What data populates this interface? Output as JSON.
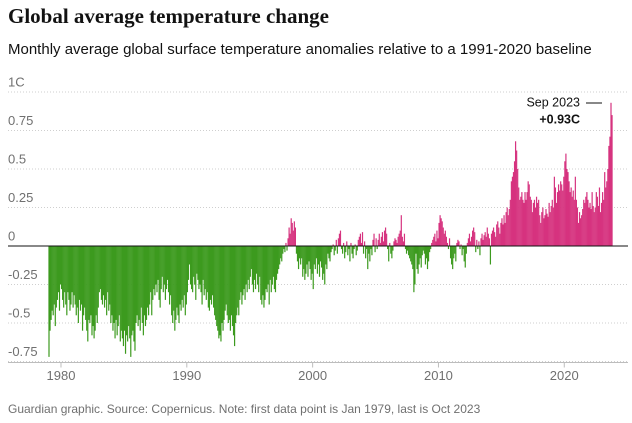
{
  "chart_data": {
    "type": "bar",
    "title": "Global average temperature change",
    "subtitle": "Monthly average global surface temperature anomalies relative to a 1991-2020 baseline",
    "source": "Guardian graphic. Source: Copernicus. Note: first data point is Jan 1979, last is Oct 2023",
    "color_positive": "#d6337f",
    "color_negative": "#3c9a1e",
    "xlim": [
      1979,
      2023.833
    ],
    "xticks": [
      1980,
      1990,
      2000,
      2010,
      2020
    ],
    "ylim": [
      -0.75,
      1
    ],
    "yticks": [
      {
        "value": 1,
        "label": "1C"
      },
      0.75,
      0.5,
      0.25,
      0,
      -0.25,
      -0.5,
      -0.75
    ],
    "grid": true,
    "annotations": [
      {
        "text": "Sep 2023",
        "value_label": "+0.93C"
      }
    ],
    "values": [
      -0.72,
      -0.55,
      -0.48,
      -0.42,
      -0.45,
      -0.38,
      -0.52,
      -0.4,
      -0.35,
      -0.3,
      -0.42,
      -0.25,
      -0.28,
      -0.35,
      -0.4,
      -0.3,
      -0.38,
      -0.45,
      -0.3,
      -0.35,
      -0.42,
      -0.38,
      -0.3,
      -0.4,
      -0.32,
      -0.38,
      -0.45,
      -0.4,
      -0.5,
      -0.35,
      -0.42,
      -0.38,
      -0.55,
      -0.45,
      -0.4,
      -0.48,
      -0.55,
      -0.62,
      -0.48,
      -0.5,
      -0.45,
      -0.58,
      -0.52,
      -0.6,
      -0.55,
      -0.45,
      -0.5,
      -0.4,
      -0.3,
      -0.28,
      -0.35,
      -0.38,
      -0.32,
      -0.4,
      -0.35,
      -0.45,
      -0.3,
      -0.42,
      -0.38,
      -0.5,
      -0.45,
      -0.55,
      -0.5,
      -0.6,
      -0.48,
      -0.58,
      -0.52,
      -0.45,
      -0.62,
      -0.55,
      -0.6,
      -0.65,
      -0.55,
      -0.7,
      -0.58,
      -0.62,
      -0.52,
      -0.6,
      -0.72,
      -0.58,
      -0.55,
      -0.62,
      -0.68,
      -0.5,
      -0.45,
      -0.52,
      -0.48,
      -0.55,
      -0.4,
      -0.5,
      -0.58,
      -0.45,
      -0.52,
      -0.48,
      -0.4,
      -0.45,
      -0.38,
      -0.3,
      -0.45,
      -0.35,
      -0.28,
      -0.32,
      -0.25,
      -0.3,
      -0.22,
      -0.35,
      -0.4,
      -0.28,
      -0.2,
      -0.3,
      -0.25,
      -0.35,
      -0.28,
      -0.22,
      -0.3,
      -0.38,
      -0.32,
      -0.45,
      -0.5,
      -0.42,
      -0.55,
      -0.48,
      -0.4,
      -0.45,
      -0.5,
      -0.38,
      -0.42,
      -0.35,
      -0.4,
      -0.32,
      -0.45,
      -0.38,
      -0.3,
      -0.22,
      -0.12,
      -0.25,
      -0.28,
      -0.3,
      -0.2,
      -0.25,
      -0.35,
      -0.18,
      -0.22,
      -0.28,
      -0.25,
      -0.3,
      -0.38,
      -0.22,
      -0.32,
      -0.28,
      -0.35,
      -0.3,
      -0.4,
      -0.42,
      -0.35,
      -0.38,
      -0.32,
      -0.4,
      -0.45,
      -0.48,
      -0.52,
      -0.55,
      -0.6,
      -0.58,
      -0.62,
      -0.5,
      -0.55,
      -0.48,
      -0.42,
      -0.38,
      -0.45,
      -0.5,
      -0.48,
      -0.55,
      -0.45,
      -0.52,
      -0.58,
      -0.65,
      -0.5,
      -0.45,
      -0.4,
      -0.45,
      -0.35,
      -0.3,
      -0.38,
      -0.32,
      -0.28,
      -0.35,
      -0.25,
      -0.3,
      -0.22,
      -0.28,
      -0.2,
      -0.15,
      -0.25,
      -0.3,
      -0.22,
      -0.28,
      -0.18,
      -0.25,
      -0.3,
      -0.2,
      -0.35,
      -0.38,
      -0.32,
      -0.4,
      -0.35,
      -0.28,
      -0.3,
      -0.25,
      -0.38,
      -0.22,
      -0.3,
      -0.25,
      -0.2,
      -0.28,
      -0.3,
      -0.22,
      -0.18,
      -0.15,
      -0.12,
      -0.08,
      -0.1,
      -0.05,
      -0.02,
      -0.04,
      0.02,
      -0.03,
      0.05,
      0.12,
      0.08,
      0.18,
      0.15,
      0.1,
      0.16,
      0.12,
      -0.05,
      -0.1,
      -0.15,
      -0.08,
      -0.12,
      -0.08,
      -0.2,
      -0.15,
      -0.22,
      -0.18,
      -0.12,
      -0.2,
      -0.1,
      -0.15,
      -0.22,
      -0.18,
      -0.28,
      -0.12,
      -0.15,
      -0.08,
      -0.18,
      -0.12,
      -0.2,
      -0.1,
      -0.14,
      -0.22,
      -0.18,
      -0.25,
      -0.12,
      -0.15,
      -0.05,
      -0.08,
      -0.1,
      -0.04,
      -0.02,
      0.01,
      -0.06,
      -0.03,
      0.04,
      -0.05,
      0.05,
      0.08,
      0.1,
      -0.02,
      -0.05,
      0.02,
      -0.08,
      -0.04,
      0.03,
      -0.06,
      -0.02,
      -0.1,
      0.02,
      -0.05,
      -0.08,
      -0.02,
      0.01,
      -0.06,
      -0.03,
      0.04,
      0.06,
      0.08,
      0.02,
      0.09,
      -0.05,
      0.03,
      -0.08,
      -0.02,
      -0.15,
      -0.05,
      -0.1,
      -0.02,
      -0.06,
      0.04,
      0.08,
      -0.04,
      0.05,
      -0.02,
      0.04,
      0.08,
      0.02,
      0.06,
      0.09,
      0.03,
      0.1,
      0.12,
      0.08,
      -0.02,
      -0.1,
      0.02,
      -0.05,
      -0.08,
      -0.03,
      0.03,
      0.05,
      0.04,
      0.02,
      0.06,
      0.08,
      0.1,
      0.2,
      0.06,
      0.03,
      0.08,
      -0.02,
      -0.05,
      -0.03,
      -0.06,
      -0.08,
      -0.1,
      -0.12,
      -0.15,
      -0.3,
      -0.25,
      -0.05,
      -0.15,
      -0.18,
      -0.12,
      -0.08,
      -0.14,
      -0.06,
      -0.03,
      -0.05,
      -0.12,
      -0.08,
      -0.15,
      -0.1,
      -0.04,
      -0.02,
      0.02,
      0.04,
      0.06,
      0.08,
      0.03,
      0.1,
      0.05,
      0.15,
      0.2,
      0.18,
      0.16,
      0.12,
      0.08,
      0.1,
      0.06,
      0.02,
      -0.02,
      0.05,
      -0.08,
      -0.12,
      -0.15,
      -0.08,
      -0.05,
      -0.1,
      0.02,
      0.04,
      0.03,
      -0.02,
      0.01,
      -0.06,
      -0.02,
      -0.1,
      -0.14,
      -0.05,
      0.02,
      0.05,
      0.08,
      0.03,
      0.06,
      0.1,
      0.12,
      0.09,
      -0.04,
      0.04,
      -0.02,
      0.03,
      -0.06,
      0.05,
      0.08,
      0.04,
      0.07,
      0.09,
      0.06,
      0.12,
      0.08,
      0.05,
      -0.12,
      0.08,
      0.1,
      0.12,
      0.09,
      0.06,
      0.14,
      0.16,
      0.12,
      0.08,
      0.15,
      0.18,
      0.14,
      0.2,
      0.15,
      0.22,
      0.25,
      0.2,
      0.24,
      0.3,
      0.42,
      0.45,
      0.48,
      0.55,
      0.68,
      0.62,
      0.5,
      0.38,
      0.3,
      0.32,
      0.35,
      0.3,
      0.28,
      0.35,
      0.3,
      0.35,
      0.42,
      0.4,
      0.32,
      0.3,
      0.22,
      0.28,
      0.3,
      0.25,
      0.32,
      0.28,
      0.3,
      0.2,
      0.15,
      0.22,
      0.25,
      0.18,
      0.2,
      0.24,
      0.21,
      0.19,
      0.28,
      0.22,
      0.26,
      0.3,
      0.25,
      0.45,
      0.38,
      0.28,
      0.35,
      0.4,
      0.36,
      0.42,
      0.4,
      0.36,
      0.45,
      0.55,
      0.6,
      0.5,
      0.48,
      0.42,
      0.35,
      0.38,
      0.32,
      0.36,
      0.3,
      0.45,
      0.3,
      0.25,
      0.15,
      0.22,
      0.18,
      0.2,
      0.24,
      0.3,
      0.28,
      0.32,
      0.35,
      0.3,
      0.25,
      0.28,
      0.24,
      0.35,
      0.26,
      0.22,
      0.25,
      0.35,
      0.32,
      0.26,
      0.38,
      0.22,
      0.28,
      0.35,
      0.3,
      0.48,
      0.38,
      0.42,
      0.5,
      0.65,
      0.71,
      0.93,
      0.85
    ]
  }
}
